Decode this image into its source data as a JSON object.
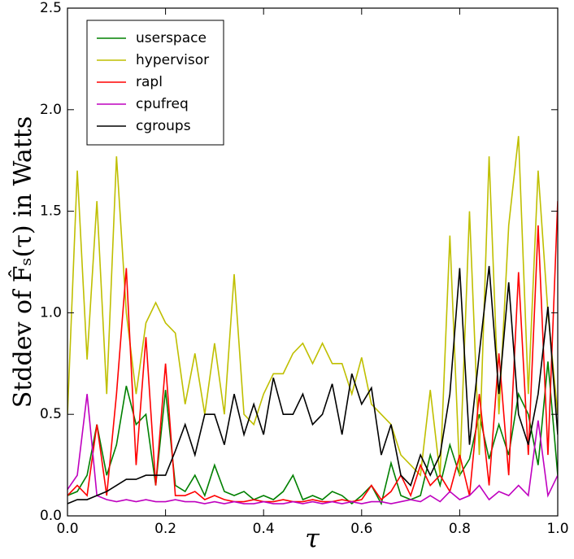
{
  "chart_data": {
    "type": "line",
    "xlabel": "τ",
    "ylabel": "Stddev of F̂ₛ(τ) in Watts",
    "x": [
      0,
      0.02,
      0.04,
      0.06,
      0.08,
      0.1,
      0.12,
      0.14,
      0.16,
      0.18,
      0.2,
      0.22,
      0.24,
      0.26,
      0.28,
      0.3,
      0.32,
      0.34,
      0.36,
      0.38,
      0.4,
      0.42,
      0.44,
      0.46,
      0.48,
      0.5,
      0.52,
      0.54,
      0.56,
      0.58,
      0.6,
      0.62,
      0.64,
      0.66,
      0.68,
      0.7,
      0.72,
      0.74,
      0.76,
      0.78,
      0.8,
      0.82,
      0.84,
      0.86,
      0.88,
      0.9,
      0.92,
      0.94,
      0.96,
      0.98,
      1.0
    ],
    "series": [
      {
        "name": "userspace",
        "color": "#008000",
        "values": [
          0.1,
          0.12,
          0.2,
          0.45,
          0.2,
          0.35,
          0.64,
          0.45,
          0.5,
          0.15,
          0.62,
          0.15,
          0.12,
          0.2,
          0.1,
          0.25,
          0.12,
          0.1,
          0.12,
          0.08,
          0.1,
          0.08,
          0.12,
          0.2,
          0.08,
          0.1,
          0.08,
          0.12,
          0.1,
          0.06,
          0.1,
          0.15,
          0.06,
          0.26,
          0.1,
          0.08,
          0.1,
          0.3,
          0.15,
          0.35,
          0.2,
          0.28,
          0.5,
          0.28,
          0.45,
          0.3,
          0.6,
          0.5,
          0.25,
          0.76,
          0.2
        ]
      },
      {
        "name": "hypervisor",
        "color": "#bfbf00",
        "values": [
          0.5,
          1.7,
          0.77,
          1.55,
          0.6,
          1.77,
          1.0,
          0.6,
          0.95,
          1.05,
          0.95,
          0.9,
          0.55,
          0.8,
          0.5,
          0.85,
          0.5,
          1.19,
          0.5,
          0.45,
          0.6,
          0.7,
          0.7,
          0.8,
          0.85,
          0.75,
          0.85,
          0.75,
          0.75,
          0.6,
          0.78,
          0.55,
          0.5,
          0.45,
          0.3,
          0.25,
          0.2,
          0.62,
          0.2,
          1.38,
          0.2,
          1.5,
          0.3,
          1.77,
          0.5,
          1.43,
          1.87,
          0.6,
          1.7,
          1.0,
          0.5
        ]
      },
      {
        "name": "rapl",
        "color": "#ff0000",
        "values": [
          0.1,
          0.15,
          0.1,
          0.45,
          0.1,
          0.6,
          1.22,
          0.25,
          0.88,
          0.15,
          0.75,
          0.1,
          0.1,
          0.12,
          0.08,
          0.1,
          0.08,
          0.07,
          0.07,
          0.08,
          0.07,
          0.07,
          0.08,
          0.07,
          0.07,
          0.08,
          0.07,
          0.07,
          0.08,
          0.07,
          0.08,
          0.15,
          0.08,
          0.12,
          0.2,
          0.1,
          0.25,
          0.15,
          0.2,
          0.12,
          0.3,
          0.1,
          0.6,
          0.15,
          0.8,
          0.2,
          1.2,
          0.3,
          1.43,
          0.3,
          1.55
        ]
      },
      {
        "name": "cpufreq",
        "color": "#bf00bf",
        "values": [
          0.13,
          0.2,
          0.6,
          0.1,
          0.08,
          0.07,
          0.08,
          0.07,
          0.08,
          0.07,
          0.07,
          0.08,
          0.07,
          0.07,
          0.06,
          0.07,
          0.06,
          0.07,
          0.06,
          0.06,
          0.07,
          0.06,
          0.06,
          0.07,
          0.06,
          0.07,
          0.06,
          0.07,
          0.06,
          0.07,
          0.06,
          0.07,
          0.07,
          0.06,
          0.07,
          0.08,
          0.07,
          0.1,
          0.07,
          0.12,
          0.08,
          0.1,
          0.15,
          0.08,
          0.12,
          0.1,
          0.15,
          0.1,
          0.47,
          0.1,
          0.2
        ]
      },
      {
        "name": "cgroups",
        "color": "#000000",
        "values": [
          0.06,
          0.08,
          0.08,
          0.1,
          0.12,
          0.15,
          0.18,
          0.18,
          0.2,
          0.2,
          0.2,
          0.32,
          0.45,
          0.3,
          0.5,
          0.5,
          0.35,
          0.6,
          0.4,
          0.55,
          0.4,
          0.68,
          0.5,
          0.5,
          0.6,
          0.45,
          0.5,
          0.65,
          0.4,
          0.7,
          0.55,
          0.63,
          0.3,
          0.45,
          0.2,
          0.15,
          0.3,
          0.2,
          0.3,
          0.6,
          1.22,
          0.35,
          0.8,
          1.23,
          0.6,
          1.15,
          0.5,
          0.35,
          0.6,
          1.03,
          0.4
        ]
      }
    ],
    "xlim": [
      0,
      1
    ],
    "ylim": [
      0,
      2.5
    ],
    "xticks": [
      {
        "value": 0,
        "label": "0.0"
      },
      0.2,
      0.4,
      0.6,
      0.8,
      {
        "value": 1,
        "label": "1.0"
      }
    ],
    "yticks": [
      {
        "value": 0,
        "label": "0.0"
      },
      0.5,
      {
        "value": 1,
        "label": "1.0"
      },
      1.5,
      {
        "value": 2,
        "label": "2.0"
      },
      2.5
    ],
    "legend": "upper left",
    "grid": false
  }
}
